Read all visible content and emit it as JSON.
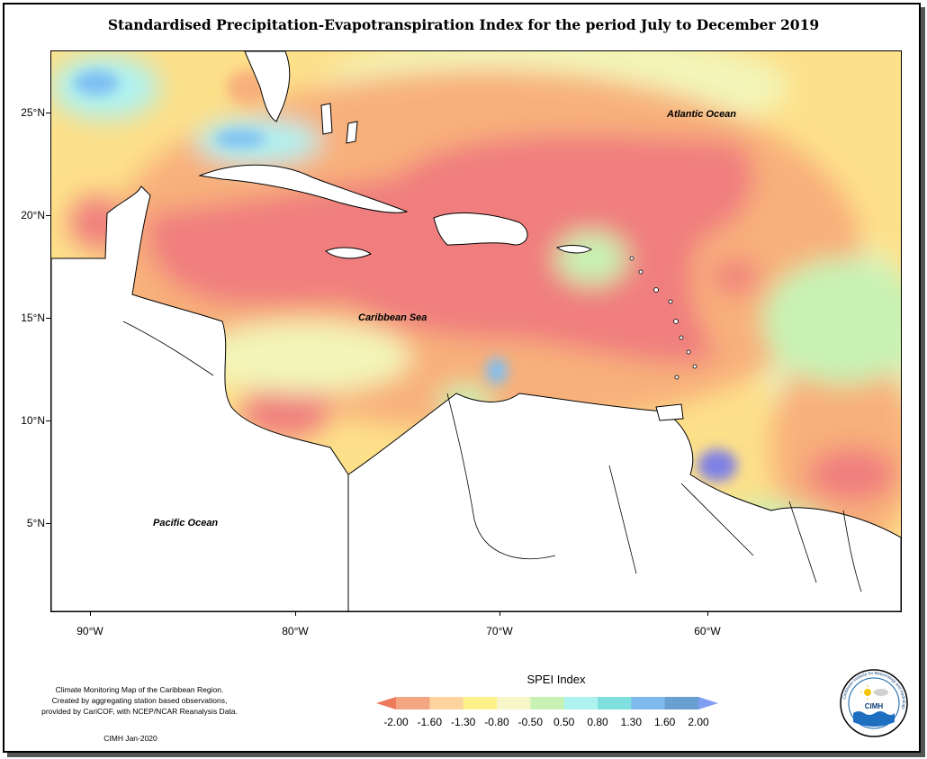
{
  "title": "Standardised Precipitation-Evapotranspiration Index for the period July to December 2019",
  "map": {
    "lat_ticks": [
      "25°N",
      "20°N",
      "15°N",
      "10°N",
      "5°N"
    ],
    "lon_ticks": [
      "90°W",
      "80°W",
      "70°W",
      "60°W"
    ],
    "labels": {
      "atlantic": "Atlantic Ocean",
      "caribbean": "Caribbean Sea",
      "pacific": "Pacific Ocean"
    }
  },
  "legend": {
    "title": "SPEI Index",
    "breaks": [
      "-2.00",
      "-1.60",
      "-1.30",
      "-0.80",
      "-0.50",
      "0.50",
      "0.80",
      "1.30",
      "1.60",
      "2.00"
    ],
    "colors": [
      "#ed7a5a",
      "#f4a582",
      "#fdd49e",
      "#fdf28a",
      "#f7f6c9",
      "#c8f2b4",
      "#aef2ee",
      "#7fe0df",
      "#7fb9ee",
      "#6a9fd2",
      "#7f9ef2"
    ]
  },
  "footnote": {
    "line1": "Climate Monitoring Map of the Caribbean Region.",
    "line2": "Created by aggregating station based observations,",
    "line3": "provided by CariCOF, with NCEP/NCAR Reanalysis Data.",
    "credit": "CIMH Jan-2020"
  },
  "logo": {
    "text": "CIMH",
    "ring_text": "Caribbean Institute for Meteorology and Hydrology"
  },
  "colors": {
    "dry_extreme": "#f07e7e",
    "dry_strong": "#f8b07a",
    "dry_moderate": "#fde08a",
    "normal": "#f7f6b8",
    "wet_mild": "#c8f2b4",
    "wet_moderate": "#aef2f2",
    "wet_strong": "#7fbff2",
    "wet_extreme": "#7f80e6"
  }
}
